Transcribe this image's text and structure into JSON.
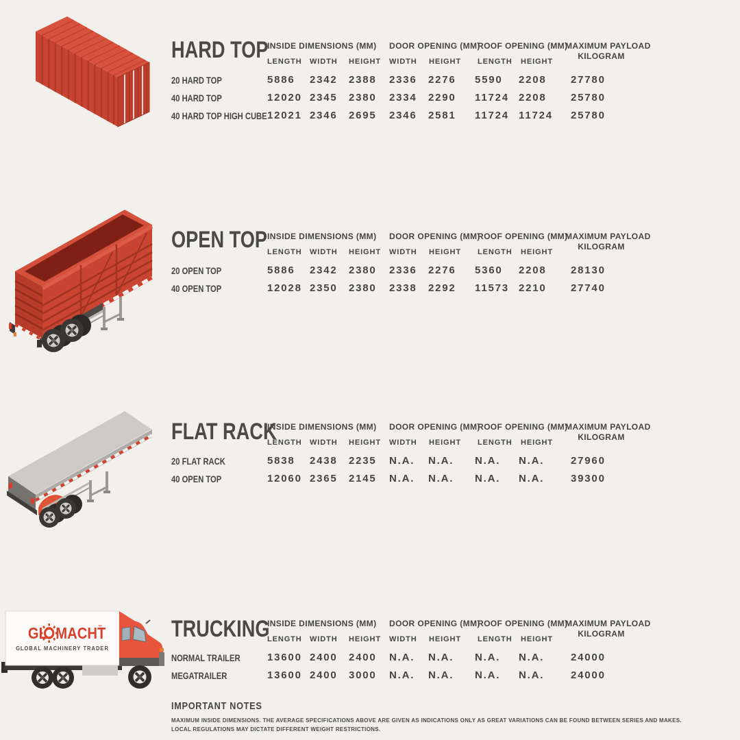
{
  "colors": {
    "background": "#f1f0ec",
    "text": "#454440",
    "accent_red": "#cf4130",
    "red_dark": "#b23a27",
    "red_light": "#d8523d",
    "logo_red": "#d9412c"
  },
  "table": {
    "group_inside": "INSIDE DIMENSIONS (MM)",
    "group_door": "DOOR OPENING (MM)",
    "group_roof": "ROOF OPENING (MM)",
    "group_payload_line1": "MAXIMUM PAYLOAD",
    "group_payload_line2": "KILOGRAM",
    "sub_headers": [
      "LENGTH",
      "WIDTH",
      "HEIGHT",
      "WIDTH",
      "HEIGHT",
      "LENGTH",
      "HEIGHT"
    ]
  },
  "sections": [
    {
      "title": "HARD TOP",
      "illustration": "hard-top-container",
      "rows": [
        {
          "label": "20 HARD TOP",
          "values": [
            "5886",
            "2342",
            "2388",
            "2336",
            "2276",
            "5590",
            "2208",
            "27780"
          ]
        },
        {
          "label": "40 HARD TOP",
          "values": [
            "12020",
            "2345",
            "2380",
            "2334",
            "2290",
            "11724",
            "2208",
            "25780"
          ]
        },
        {
          "label": "40 HARD TOP HIGH CUBE",
          "values": [
            "12021",
            "2346",
            "2695",
            "2346",
            "2581",
            "11724",
            "11724",
            "25780"
          ]
        }
      ]
    },
    {
      "title": "OPEN TOP",
      "illustration": "open-top-trailer",
      "rows": [
        {
          "label": "20 OPEN TOP",
          "values": [
            "5886",
            "2342",
            "2380",
            "2336",
            "2276",
            "5360",
            "2208",
            "28130"
          ]
        },
        {
          "label": "40 OPEN TOP",
          "values": [
            "12028",
            "2350",
            "2380",
            "2338",
            "2292",
            "11573",
            "2210",
            "27740"
          ]
        }
      ]
    },
    {
      "title": "FLAT RACK",
      "illustration": "flat-rack-trailer",
      "rows": [
        {
          "label": "20 FLAT RACK",
          "values": [
            "5838",
            "2438",
            "2235",
            "N.A.",
            "N.A.",
            "N.A.",
            "N.A.",
            "27960"
          ]
        },
        {
          "label": "40 OPEN TOP",
          "values": [
            "12060",
            "2365",
            "2145",
            "N.A.",
            "N.A.",
            "N.A.",
            "N.A.",
            "39300"
          ]
        }
      ]
    },
    {
      "title": "TRUCKING",
      "illustration": "glomacht-truck",
      "rows": [
        {
          "label": "NORMAL TRAILER",
          "values": [
            "13600",
            "2400",
            "2400",
            "N.A.",
            "N.A.",
            "N.A.",
            "N.A.",
            "24000"
          ]
        },
        {
          "label": "MEGATRAILER",
          "values": [
            "13600",
            "2400",
            "3000",
            "N.A.",
            "N.A.",
            "N.A.",
            "N.A.",
            "24000"
          ]
        }
      ]
    }
  ],
  "logo": {
    "prefix": "GL",
    "suffix": "MACHT",
    "tm": "™",
    "tagline": "GLOBAL  MACHINERY  TRADER"
  },
  "notes": {
    "title": "IMPORTANT NOTES",
    "line1": "MAXIMUM INSIDE DIMENSIONS. THE AVERAGE SPECIFICATIONS ABOVE ARE GIVEN AS INDICATIONS ONLY AS GREAT VARIATIONS CAN BE FOUND BETWEEN SERIES AND MAKES.",
    "line2": "LOCAL REGULATIONS MAY DICTATE DIFFERENT WEIGHT RESTRICTIONS."
  }
}
